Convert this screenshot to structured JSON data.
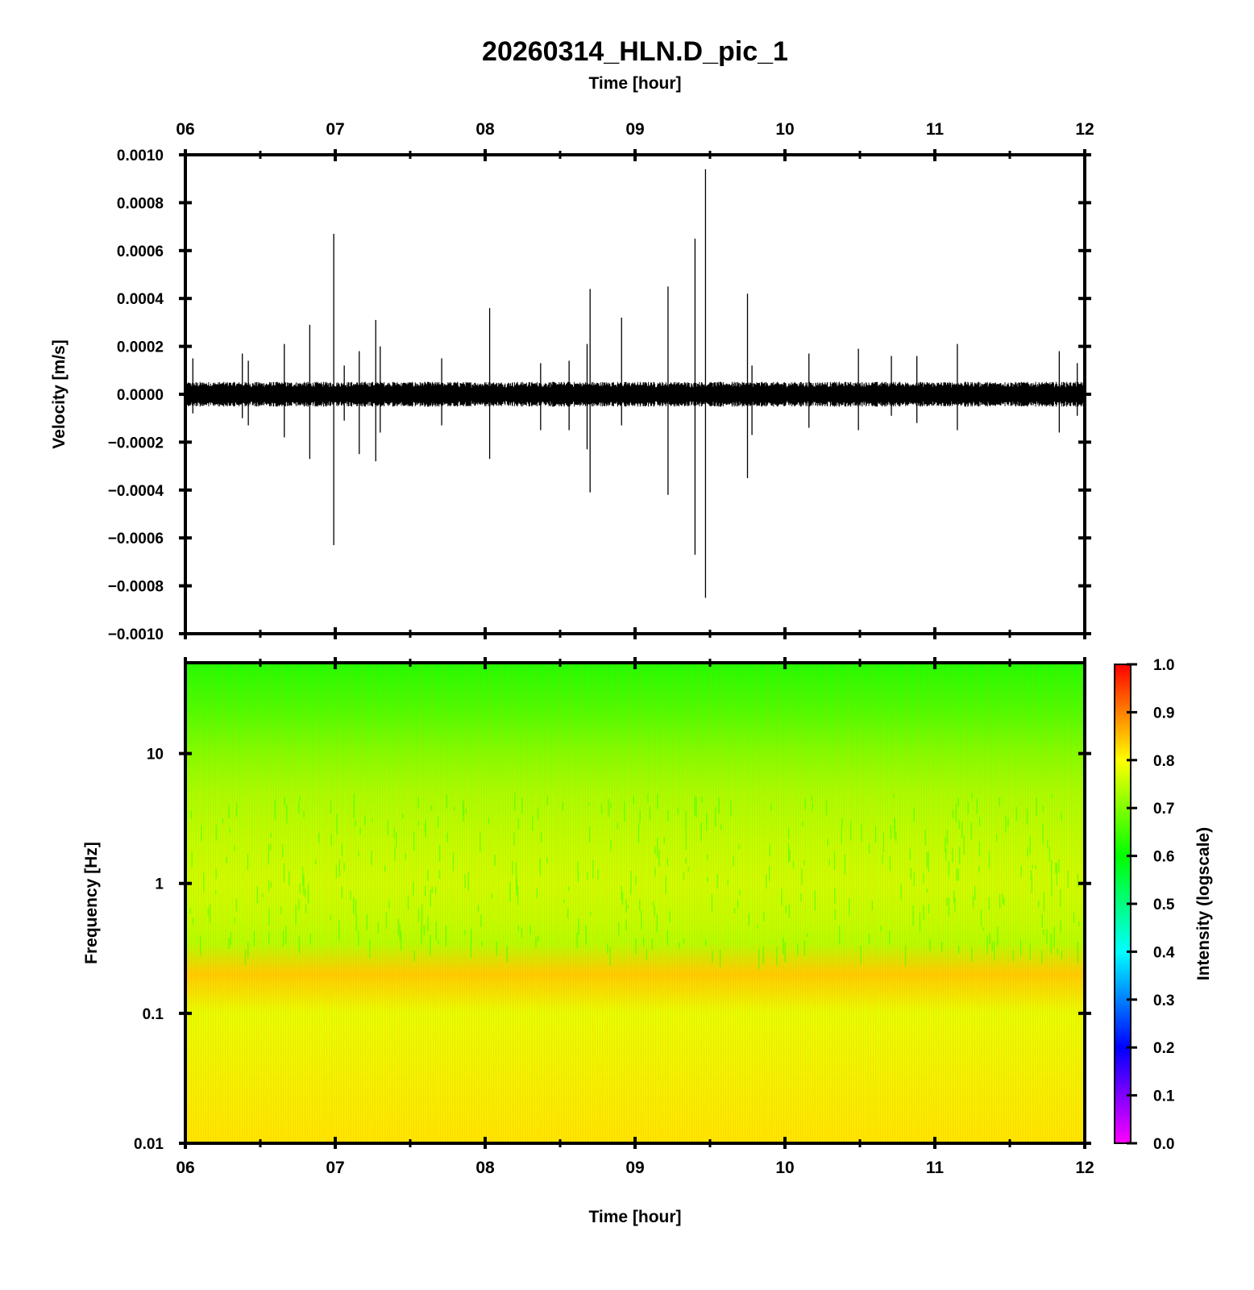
{
  "title": "20260314_HLN.D_pic_1",
  "chart_data": [
    {
      "type": "line",
      "panel": "waveform",
      "xlabel": "Time [hour]",
      "ylabel": "Velocity [m/s]",
      "xlim": [
        6,
        12
      ],
      "ylim": [
        -0.001,
        0.001
      ],
      "x_tick_labels": [
        "06",
        "07",
        "08",
        "09",
        "10",
        "11",
        "12"
      ],
      "x_ticks": [
        6,
        7,
        8,
        9,
        10,
        11,
        12
      ],
      "y_tick_labels": [
        "0.0010",
        "0.0008",
        "0.0006",
        "0.0004",
        "0.0002",
        "0.0000",
        "−0.0002",
        "−0.0004",
        "−0.0006",
        "−0.0008",
        "−0.0010"
      ],
      "y_ticks": [
        0.001,
        0.0008,
        0.0006,
        0.0004,
        0.0002,
        0.0,
        -0.0002,
        -0.0004,
        -0.0006,
        -0.0008,
        -0.001
      ],
      "noise_amplitude": 4e-05,
      "line_color": "#000000",
      "spikes": [
        {
          "x": 6.05,
          "up": 0.00015,
          "down": -8e-05
        },
        {
          "x": 6.38,
          "up": 0.00017,
          "down": -0.0001
        },
        {
          "x": 6.42,
          "up": 0.00014,
          "down": -0.00013
        },
        {
          "x": 6.66,
          "up": 0.00021,
          "down": -0.00018
        },
        {
          "x": 6.83,
          "up": 0.00029,
          "down": -0.00027
        },
        {
          "x": 6.99,
          "up": 0.00067,
          "down": -0.00063
        },
        {
          "x": 7.06,
          "up": 0.00012,
          "down": -0.00011
        },
        {
          "x": 7.16,
          "up": 0.00018,
          "down": -0.00025
        },
        {
          "x": 7.27,
          "up": 0.00031,
          "down": -0.00028
        },
        {
          "x": 7.3,
          "up": 0.0002,
          "down": -0.00016
        },
        {
          "x": 7.71,
          "up": 0.00015,
          "down": -0.00013
        },
        {
          "x": 8.03,
          "up": 0.00036,
          "down": -0.00027
        },
        {
          "x": 8.37,
          "up": 0.00013,
          "down": -0.00015
        },
        {
          "x": 8.56,
          "up": 0.00014,
          "down": -0.00015
        },
        {
          "x": 8.68,
          "up": 0.00021,
          "down": -0.00023
        },
        {
          "x": 8.7,
          "up": 0.00044,
          "down": -0.00041
        },
        {
          "x": 8.91,
          "up": 0.00032,
          "down": -0.00013
        },
        {
          "x": 9.22,
          "up": 0.00045,
          "down": -0.00042
        },
        {
          "x": 9.4,
          "up": 0.00065,
          "down": -0.00067
        },
        {
          "x": 9.47,
          "up": 0.00094,
          "down": -0.00085
        },
        {
          "x": 9.75,
          "up": 0.00042,
          "down": -0.00035
        },
        {
          "x": 9.78,
          "up": 0.00012,
          "down": -0.00017
        },
        {
          "x": 10.16,
          "up": 0.00017,
          "down": -0.00014
        },
        {
          "x": 10.49,
          "up": 0.00019,
          "down": -0.00015
        },
        {
          "x": 10.71,
          "up": 0.00016,
          "down": -9e-05
        },
        {
          "x": 10.88,
          "up": 0.00016,
          "down": -0.00012
        },
        {
          "x": 11.15,
          "up": 0.00021,
          "down": -0.00015
        },
        {
          "x": 11.83,
          "up": 0.00018,
          "down": -0.00016
        },
        {
          "x": 11.95,
          "up": 0.00013,
          "down": -9e-05
        }
      ]
    },
    {
      "type": "heatmap",
      "panel": "spectrogram",
      "xlabel": "Time [hour]",
      "ylabel": "Frequency [Hz]",
      "xlim": [
        6,
        12
      ],
      "ylim": [
        0.01,
        50
      ],
      "y_scale": "log",
      "x_tick_labels": [
        "06",
        "07",
        "08",
        "09",
        "10",
        "11",
        "12"
      ],
      "x_ticks": [
        6,
        7,
        8,
        9,
        10,
        11,
        12
      ],
      "y_tick_labels": [
        "10",
        "1",
        "0.1",
        "0.01"
      ],
      "y_ticks": [
        10,
        1,
        0.1,
        0.01
      ],
      "intensity_profile": [
        {
          "freq": 50,
          "intensity": 0.62
        },
        {
          "freq": 20,
          "intensity": 0.66
        },
        {
          "freq": 10,
          "intensity": 0.7
        },
        {
          "freq": 5,
          "intensity": 0.73
        },
        {
          "freq": 2,
          "intensity": 0.75
        },
        {
          "freq": 1,
          "intensity": 0.76
        },
        {
          "freq": 0.5,
          "intensity": 0.75
        },
        {
          "freq": 0.35,
          "intensity": 0.74
        },
        {
          "freq": 0.2,
          "intensity": 0.84
        },
        {
          "freq": 0.1,
          "intensity": 0.78
        },
        {
          "freq": 0.01,
          "intensity": 0.82
        }
      ],
      "colorbar": {
        "label": "Intensity (logscale)",
        "range": [
          0,
          1
        ],
        "tick_labels": [
          "1.0",
          "0.9",
          "0.8",
          "0.7",
          "0.6",
          "0.5",
          "0.4",
          "0.3",
          "0.2",
          "0.1",
          "0.0"
        ],
        "ticks": [
          1.0,
          0.9,
          0.8,
          0.7,
          0.6,
          0.5,
          0.4,
          0.3,
          0.2,
          0.1,
          0.0
        ],
        "colors": [
          "#ff00ff",
          "#0000ff",
          "#00ffff",
          "#00ff00",
          "#ffff00",
          "#ff0000"
        ]
      }
    }
  ]
}
